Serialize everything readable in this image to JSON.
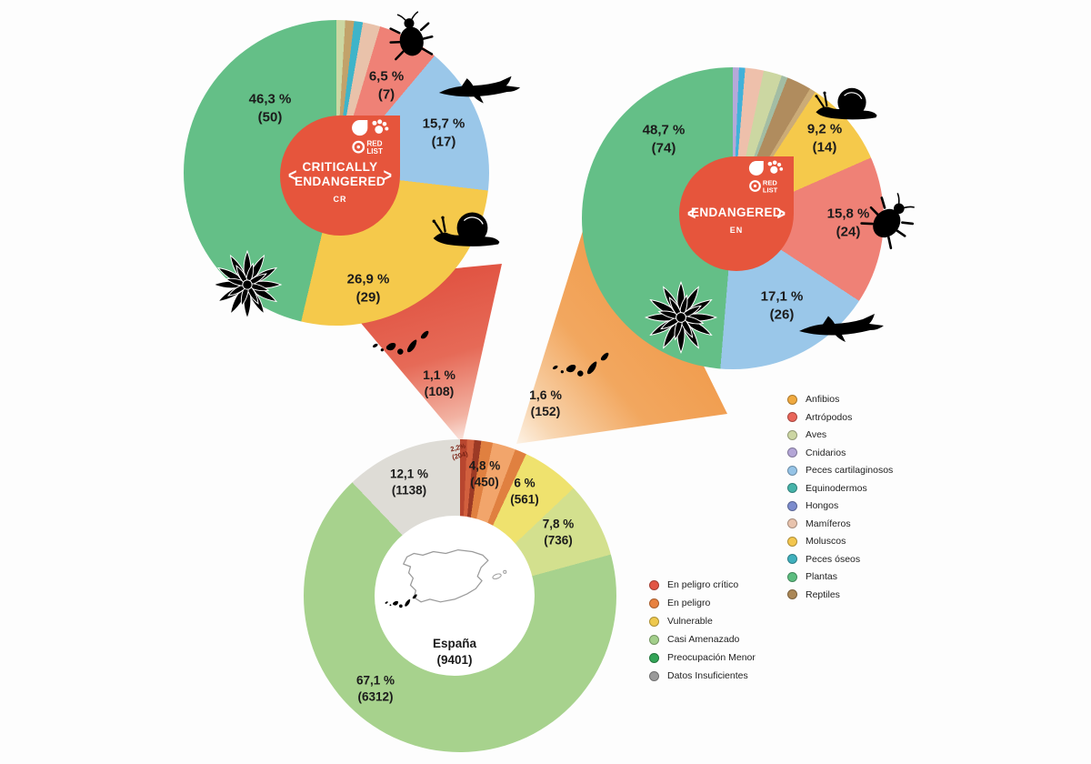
{
  "ui": {
    "chevron_left": "<",
    "chevron_right": ">"
  },
  "logo": {
    "line1": "RED",
    "line2": "LIST"
  },
  "chart_data": [
    {
      "id": "critically-endangered",
      "type": "pie",
      "title_line1": "CRITICALLY",
      "title_line2": "ENDANGERED",
      "code": "CR",
      "total": 108,
      "legend_position": "none",
      "slices": [
        {
          "label": "Aves",
          "value": 1,
          "color": "#ccd7a2"
        },
        {
          "label": "Reptiles",
          "value": 1,
          "color": "#c2a26a"
        },
        {
          "label": "Peces óseos",
          "value": 1,
          "color": "#3eb4c9"
        },
        {
          "label": "Mamíferos",
          "value": 2,
          "color": "#e9c2aa"
        },
        {
          "label": "Artrópodos",
          "value": 7,
          "color": "#ef8176",
          "pct_label": "6,5 %",
          "count_label": "(7)"
        },
        {
          "label": "Peces cartilaginosos",
          "value": 17,
          "color": "#9ac7e9",
          "pct_label": "15,7 %",
          "count_label": "(17)"
        },
        {
          "label": "Moluscos",
          "value": 29,
          "color": "#f5c94b",
          "pct_label": "26,9 %",
          "count_label": "(29)"
        },
        {
          "label": "Plantas",
          "value": 50,
          "color": "#64bf87",
          "pct_label": "46,3 %",
          "count_label": "(50)"
        }
      ],
      "callout": {
        "pct_label": "1,1 %",
        "count_label": "(108)"
      }
    },
    {
      "id": "endangered",
      "type": "pie",
      "title": "ENDANGERED",
      "code": "EN",
      "total": 152,
      "legend_position": "none",
      "slices": [
        {
          "label": "Cnidarios",
          "value": 1,
          "color": "#b6a9d9"
        },
        {
          "label": "Peces óseos",
          "value": 1,
          "color": "#41b1d9"
        },
        {
          "label": "Mamíferos",
          "value": 3,
          "color": "#eec0ab"
        },
        {
          "label": "Aves",
          "value": 3,
          "color": "#ccd7a2"
        },
        {
          "label": "Equinodermos",
          "value": 1,
          "color": "#a3bda4"
        },
        {
          "label": "Reptiles",
          "value": 4,
          "color": "#b08c5e"
        },
        {
          "label": "Anfibios",
          "value": 1,
          "color": "#cbab77"
        },
        {
          "label": "Moluscos",
          "value": 14,
          "color": "#f5c94b",
          "pct_label": "9,2 %",
          "count_label": "(14)"
        },
        {
          "label": "Artrópodos",
          "value": 24,
          "color": "#ef8176",
          "pct_label": "15,8 %",
          "count_label": "(24)"
        },
        {
          "label": "Peces cartilaginosos",
          "value": 26,
          "color": "#9ac7e9",
          "pct_label": "17,1 %",
          "count_label": "(26)"
        },
        {
          "label": "Plantas",
          "value": 74,
          "color": "#64bf87",
          "pct_label": "48,7 %",
          "count_label": "(74)"
        }
      ],
      "callout": {
        "pct_label": "1,6 %",
        "count_label": "(152)"
      }
    },
    {
      "id": "espana-total",
      "type": "donut",
      "region": "España",
      "total": 9401,
      "total_label": "(9401)",
      "slices": [
        {
          "label": "En peligro crítico",
          "value": 204,
          "color": "#c0492f",
          "stripes": [
            "#b8462f",
            "#d2603e",
            "#9c3a25"
          ],
          "pct_label": "2,2%",
          "count_label": "(204)"
        },
        {
          "label": "En peligro",
          "value": 450,
          "color": "#ec9a5e",
          "stripes": [
            "#e08040",
            "#f2a56b",
            "#f2a56b",
            "#e08040"
          ],
          "pct_label": "4,8 %",
          "count_label": "(450)"
        },
        {
          "label": "Vulnerable",
          "value": 561,
          "color": "#efe26e",
          "pct_label": "6 %",
          "count_label": "(561)"
        },
        {
          "label": "Casi Amenazado",
          "value": 736,
          "color": "#d3e08e",
          "pct_label": "7,8 %",
          "count_label": "(736)"
        },
        {
          "label": "Preocupación Menor",
          "value": 6312,
          "color": "#a7d28d",
          "pct_label": "67,1 %",
          "count_label": "(6312)"
        },
        {
          "label": "Datos Insuficientes",
          "value": 1138,
          "color": "#dedcd6",
          "pct_label": "12,1 %",
          "count_label": "(1138)"
        }
      ]
    }
  ],
  "legend_taxa": [
    {
      "label": "Anfibios",
      "color": "#efa93f"
    },
    {
      "label": "Artrópodos",
      "color": "#e9655a"
    },
    {
      "label": "Aves",
      "color": "#ccd6a3"
    },
    {
      "label": "Cnidarios",
      "color": "#b3a5d6"
    },
    {
      "label": "Peces cartilaginosos",
      "color": "#95c3e6"
    },
    {
      "label": "Equinodermos",
      "color": "#46b3a9"
    },
    {
      "label": "Hongos",
      "color": "#7c8ccd"
    },
    {
      "label": "Mamíferos",
      "color": "#e8c3ad"
    },
    {
      "label": "Moluscos",
      "color": "#f3c64e"
    },
    {
      "label": "Peces óseos",
      "color": "#3fb0bd"
    },
    {
      "label": "Plantas",
      "color": "#5cbd7f"
    },
    {
      "label": "Reptiles",
      "color": "#ab8756"
    }
  ],
  "legend_categories": [
    {
      "label": "En peligro crítico",
      "color": "#e25544"
    },
    {
      "label": "En peligro",
      "color": "#e8813f"
    },
    {
      "label": "Vulnerable",
      "color": "#eec84d"
    },
    {
      "label": "Casi Amenazado",
      "color": "#a3cf8b"
    },
    {
      "label": "Preocupación Menor",
      "color": "#33a457"
    },
    {
      "label": "Datos Insuficientes",
      "color": "#9a9a9a"
    }
  ]
}
